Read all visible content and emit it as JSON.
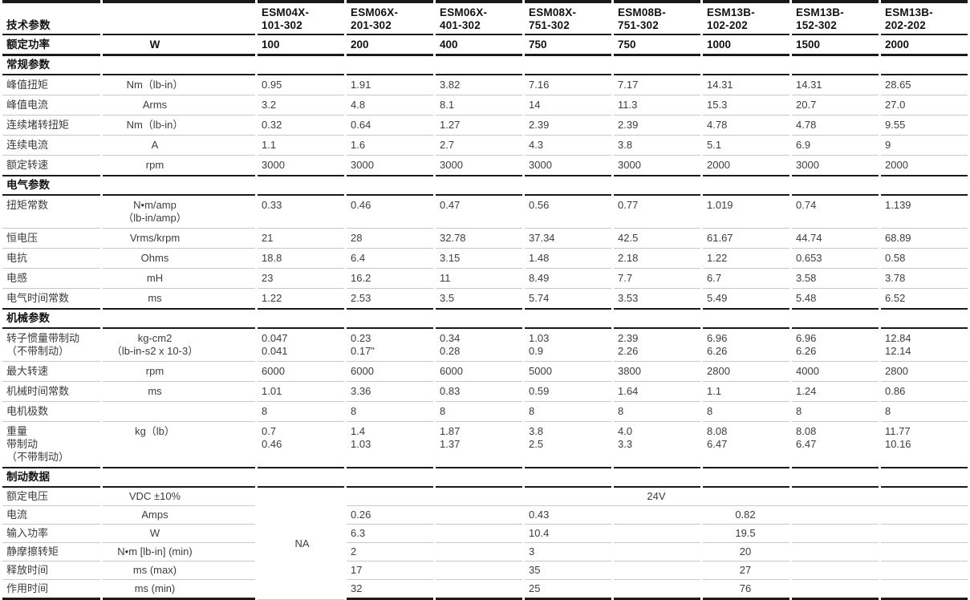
{
  "header_title": "技术参数",
  "models": [
    "ESM04X-\n101-302",
    "ESM06X-\n201-302",
    "ESM06X-\n401-302",
    "ESM08X-\n751-302",
    "ESM08B-\n751-302",
    "ESM13B-\n102-202",
    "ESM13B-\n152-302",
    "ESM13B-\n202-202"
  ],
  "power": {
    "label": "额定功率",
    "unit": "W",
    "values": [
      "100",
      "200",
      "400",
      "750",
      "750",
      "1000",
      "1500",
      "2000"
    ]
  },
  "sections": [
    {
      "title": "常规参数",
      "rows": [
        {
          "label": "峰值扭矩",
          "unit": "Nm（lb-in）",
          "values": [
            "0.95",
            "1.91",
            "3.82",
            "7.16",
            "7.17",
            "14.31",
            "14.31",
            "28.65"
          ]
        },
        {
          "label": "峰值电流",
          "unit": "Arms",
          "values": [
            "3.2",
            "4.8",
            "8.1",
            "14",
            "11.3",
            "15.3",
            "20.7",
            "27.0"
          ]
        },
        {
          "label": "连续堵转扭矩",
          "unit": "Nm（lb-in）",
          "values": [
            "0.32",
            "0.64",
            "1.27",
            "2.39",
            "2.39",
            "4.78",
            "4.78",
            "9.55"
          ]
        },
        {
          "label": "连续电流",
          "unit": "A",
          "values": [
            "1.1",
            "1.6",
            "2.7",
            "4.3",
            "3.8",
            "5.1",
            "6.9",
            "9"
          ]
        },
        {
          "label": "额定转速",
          "unit": "rpm",
          "values": [
            "3000",
            "3000",
            "3000",
            "3000",
            "3000",
            "2000",
            "3000",
            "2000"
          ]
        }
      ]
    },
    {
      "title": "电气参数",
      "rows": [
        {
          "label": "扭矩常数",
          "unit": "N•m/amp\n（lb-in/amp）",
          "values": [
            "0.33",
            "0.46",
            "0.47",
            "0.56",
            "0.77",
            "1.019",
            "0.74",
            "1.139"
          ]
        },
        {
          "label": "恒电压",
          "unit": "Vrms/krpm",
          "values": [
            "21",
            "28",
            "32.78",
            "37.34",
            "42.5",
            "61.67",
            "44.74",
            "68.89"
          ]
        },
        {
          "label": "电抗",
          "unit": "Ohms",
          "values": [
            "18.8",
            "6.4",
            "3.15",
            "1.48",
            "2.18",
            "1.22",
            "0.653",
            "0.58"
          ]
        },
        {
          "label": "电感",
          "unit": "mH",
          "values": [
            "23",
            "16.2",
            "11",
            "8.49",
            "7.7",
            "6.7",
            "3.58",
            "3.78"
          ]
        },
        {
          "label": "电气时间常数",
          "unit": "ms",
          "values": [
            "1.22",
            "2.53",
            "3.5",
            "5.74",
            "3.53",
            "5.49",
            "5.48",
            "6.52"
          ]
        }
      ]
    },
    {
      "title": "机械参数",
      "rows": [
        {
          "label": "转子惯量带制动\n（不带制动）",
          "unit": "kg-cm2\n（lb-in-s2 x 10-3）",
          "values": [
            "0.047\n0.041",
            "0.23\n0.17\"",
            "0.34\n0.28",
            "1.03\n0.9",
            "2.39\n2.26",
            "6.96\n6.26",
            "6.96\n6.26",
            "12.84\n12.14"
          ]
        },
        {
          "label": "最大转速",
          "unit": "rpm",
          "values": [
            "6000",
            "6000",
            "6000",
            "5000",
            "3800",
            "2800",
            "4000",
            "2800"
          ]
        },
        {
          "label": "机械时间常数",
          "unit": "ms",
          "values": [
            "1.01",
            "3.36",
            "0.83",
            "0.59",
            "1.64",
            "1.1",
            "1.24",
            "0.86"
          ]
        },
        {
          "label": "电机极数",
          "unit": "",
          "values": [
            "8",
            "8",
            "8",
            "8",
            "8",
            "8",
            "8",
            "8"
          ]
        },
        {
          "label": "重量\n带制动\n（不带制动）",
          "unit": "kg（lb）",
          "values": [
            "0.7\n0.46",
            "1.4\n1.03",
            "1.87\n1.37",
            "3.8\n2.5",
            "4.0\n3.3",
            "8.08\n6.47",
            "8.08\n6.47",
            "11.77\n10.16"
          ]
        }
      ]
    }
  ],
  "brake": {
    "title": "制动数据",
    "na_label": "NA",
    "voltage": {
      "label": "额定电压",
      "unit": "VDC ±10%",
      "value": "24V"
    },
    "rows": [
      {
        "label": "电流",
        "unit": "Amps",
        "values": [
          "0.26",
          "",
          "0.43",
          "",
          "0.82",
          "",
          ""
        ]
      },
      {
        "label": "输入功率",
        "unit": "W",
        "values": [
          "6.3",
          "",
          "10.4",
          "",
          "19.5",
          "",
          ""
        ]
      },
      {
        "label": "静摩擦转矩",
        "unit": "N•m [lb-in] (min)",
        "values": [
          "2",
          "",
          "3",
          "",
          "20",
          "",
          ""
        ]
      },
      {
        "label": "释放时间",
        "unit": "ms (max)",
        "values": [
          "17",
          "",
          "35",
          "",
          "27",
          "",
          ""
        ]
      },
      {
        "label": "作用时间",
        "unit": "ms (min)",
        "values": [
          "32",
          "",
          "25",
          "",
          "76",
          "",
          ""
        ]
      }
    ]
  }
}
